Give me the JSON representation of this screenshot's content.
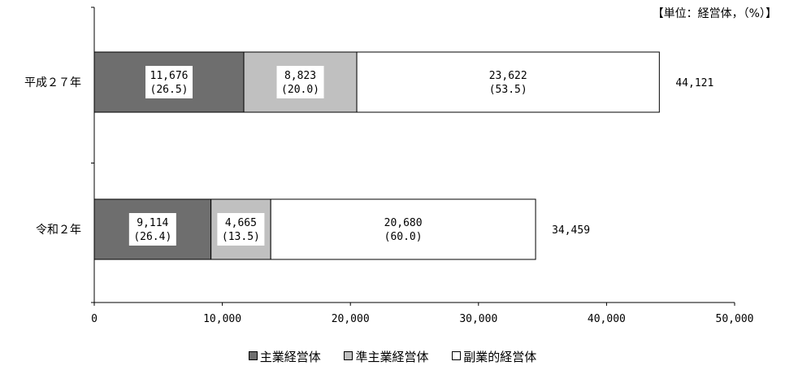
{
  "unit_note": "【単位：経営体，（%）】",
  "chart_data": {
    "type": "bar",
    "orientation": "horizontal",
    "stacked": true,
    "categories": [
      "平成２７年",
      "令和２年"
    ],
    "series": [
      {
        "name": "主業経営体",
        "values": [
          11676,
          9114
        ],
        "percent_labels": [
          "(26.5)",
          "(26.4)"
        ],
        "value_labels": [
          "11,676",
          "9,114"
        ],
        "color": "#6e6e6e"
      },
      {
        "name": "準主業経営体",
        "values": [
          8823,
          4665
        ],
        "percent_labels": [
          "(20.0)",
          "(13.5)"
        ],
        "value_labels": [
          "8,823",
          "4,665"
        ],
        "color": "#c0c0c0"
      },
      {
        "name": "副業的経営体",
        "values": [
          23622,
          20680
        ],
        "percent_labels": [
          "(53.5)",
          "(60.0)"
        ],
        "value_labels": [
          "23,622",
          "20,680"
        ],
        "color": "#ffffff"
      }
    ],
    "totals": [
      44121,
      34459
    ],
    "total_labels": [
      "44,121",
      "34,459"
    ],
    "xlim": [
      0,
      50000
    ],
    "xticks": [
      0,
      10000,
      20000,
      30000,
      40000,
      50000
    ],
    "xtick_labels": [
      "0",
      "10,000",
      "20,000",
      "30,000",
      "40,000",
      "50,000"
    ],
    "grid": false,
    "legend_position": "bottom"
  }
}
